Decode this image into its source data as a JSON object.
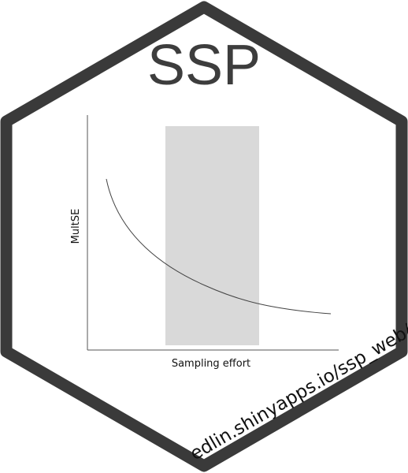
{
  "title": "SSP",
  "url": "edlin.shinyapps.io/ssp_web/",
  "plot": {
    "xlabel": "Sampling effort",
    "ylabel": "MultSE"
  },
  "colors": {
    "border": "#3a3a3a",
    "background": "#ffffff",
    "title": "#3d3d3d",
    "band": "#d9d9d9",
    "axis": "#555555",
    "curve": "#444444",
    "text": "#111111"
  }
}
